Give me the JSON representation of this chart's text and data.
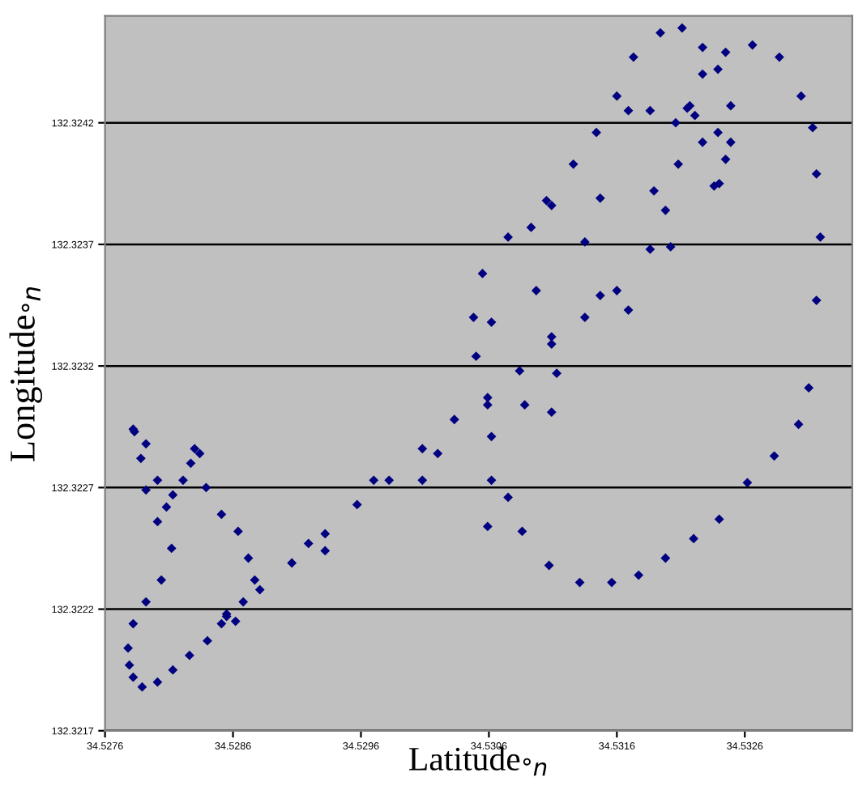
{
  "chart_data": {
    "type": "scatter",
    "xlabel": "Latitude$_{°n}$",
    "ylabel": "Longitude$_{°n}$",
    "xlim": [
      34.5276,
      34.53344
    ],
    "ylim": [
      132.3217,
      132.32464
    ],
    "xticks": [
      {
        "value": 34.5276,
        "label": "34.5276"
      },
      {
        "value": 34.5286,
        "label": "34.5286"
      },
      {
        "value": 34.5296,
        "label": "34.5296"
      },
      {
        "value": 34.5306,
        "label": "34.5306"
      },
      {
        "value": 34.5316,
        "label": "34.5316"
      },
      {
        "value": 34.5326,
        "label": "34.5326"
      }
    ],
    "yticks": [
      {
        "value": 132.3217,
        "label": "132.3217"
      },
      {
        "value": 132.3222,
        "label": "132.3222"
      },
      {
        "value": 132.3227,
        "label": "132.3227"
      },
      {
        "value": 132.3232,
        "label": "132.3232"
      },
      {
        "value": 132.3237,
        "label": "132.3237"
      },
      {
        "value": 132.3242,
        "label": "132.3242"
      }
    ],
    "grid": "y",
    "marker": "diamond",
    "series": [
      {
        "color": "#000080",
        "x": [
          34.52782,
          34.52788,
          34.52792,
          34.52801,
          34.52812,
          34.52804,
          34.52792,
          34.52782,
          34.52778,
          34.52779,
          34.52782,
          34.52789,
          34.52801,
          34.52813,
          34.52826,
          34.5284,
          34.52851,
          34.52855,
          34.52783,
          34.52792,
          34.52801,
          34.52808,
          34.5283,
          34.52834,
          34.52827,
          34.52821,
          34.52813,
          34.52839,
          34.52851,
          34.52864,
          34.52872,
          34.52877,
          34.52855,
          34.52881,
          34.52906,
          34.52932,
          34.52957,
          34.52982,
          34.53008,
          34.53033,
          34.53059,
          34.53084,
          34.53109,
          34.53135,
          34.5316,
          34.53186,
          34.53198,
          34.53208,
          34.53206,
          34.52868,
          34.52919,
          34.5297,
          34.5302,
          34.53059,
          34.53109,
          34.53147,
          34.53189,
          34.53215,
          34.52862,
          34.52932,
          34.53008,
          34.53113,
          34.53169,
          34.53202,
          34.53236,
          34.53221,
          34.53227,
          34.53239,
          34.53245,
          34.5324,
          34.53059,
          34.53075,
          34.53086,
          34.53107,
          34.53131,
          34.53156,
          34.53177,
          34.53198,
          34.5322,
          34.5324,
          34.53262,
          34.53283,
          34.53302,
          34.5331,
          34.53316,
          34.53319,
          34.53316,
          34.53313,
          34.53304,
          34.53287,
          34.53266,
          34.53245,
          34.53227,
          34.53217,
          34.53211,
          34.53194,
          34.53173,
          34.5316,
          34.53144,
          34.53126,
          34.53105,
          34.53075,
          34.53055,
          34.53048,
          34.5305,
          34.53227,
          34.53239,
          34.53249,
          34.53249,
          34.53109,
          34.53093,
          34.53062,
          34.53169,
          34.53186,
          34.53147,
          34.53062,
          34.53088,
          34.53109,
          34.53062,
          34.53135,
          34.53097
        ],
        "values": [
          132.32294,
          132.32282,
          132.32269,
          132.32256,
          132.32245,
          132.32232,
          132.32223,
          132.32214,
          132.32204,
          132.32197,
          132.32192,
          132.32188,
          132.3219,
          132.32195,
          132.32201,
          132.32207,
          132.32214,
          132.32217,
          132.32293,
          132.32288,
          132.32273,
          132.32262,
          132.32286,
          132.32284,
          132.3228,
          132.32273,
          132.32267,
          132.3227,
          132.32259,
          132.32252,
          132.32241,
          132.32232,
          132.32218,
          132.32228,
          132.32239,
          132.32251,
          132.32263,
          132.32273,
          132.32286,
          132.32298,
          132.32307,
          132.32318,
          132.32329,
          132.3234,
          132.32351,
          132.32368,
          132.32384,
          132.32403,
          132.3242,
          132.32223,
          132.32247,
          132.32273,
          132.32284,
          132.32304,
          132.32332,
          132.32349,
          132.32392,
          132.32426,
          132.32215,
          132.32244,
          132.32273,
          132.32317,
          132.32343,
          132.32369,
          132.32394,
          132.32423,
          132.32412,
          132.32416,
          132.32405,
          132.32395,
          132.32254,
          132.32266,
          132.32252,
          132.32238,
          132.32231,
          132.32231,
          132.32234,
          132.32241,
          132.32249,
          132.32257,
          132.32272,
          132.32283,
          132.32296,
          132.32311,
          132.32347,
          132.32373,
          132.32399,
          132.32418,
          132.32431,
          132.32447,
          132.32452,
          132.32449,
          132.3244,
          132.32427,
          132.32459,
          132.32457,
          132.32447,
          132.32431,
          132.32416,
          132.32403,
          132.32388,
          132.32373,
          132.32358,
          132.3234,
          132.32324,
          132.32451,
          132.32442,
          132.32427,
          132.32412,
          132.32386,
          132.32377,
          132.32338,
          132.32425,
          132.32425,
          132.32389,
          132.32291,
          132.32304,
          132.32301,
          132.32273,
          132.32371,
          132.32351
        ]
      }
    ]
  }
}
